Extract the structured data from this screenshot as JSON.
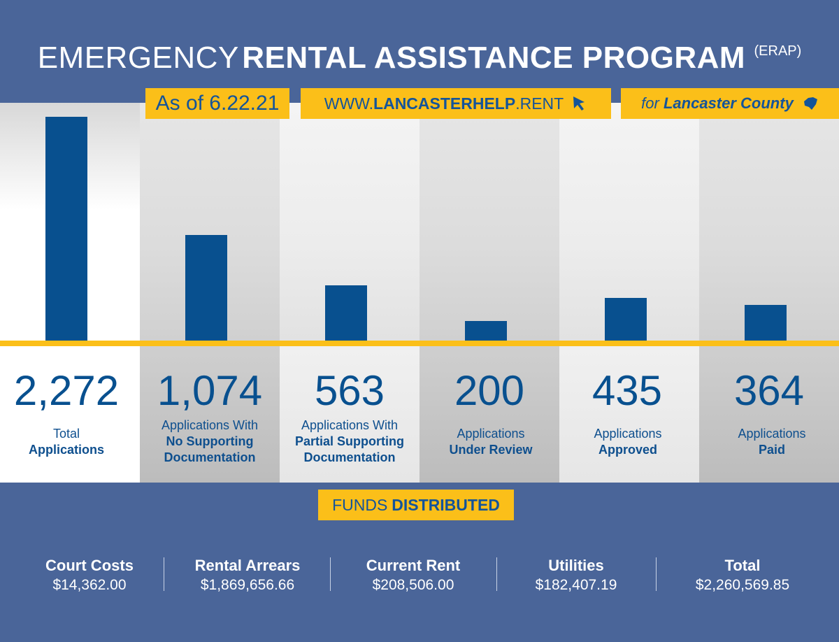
{
  "header": {
    "title_light": "EMERGENCY",
    "title_bold": "RENTAL ASSISTANCE PROGRAM",
    "title_abbr": "(ERAP)"
  },
  "banners": {
    "date": "As of 6.22.21",
    "url_prefix": "WWW.",
    "url_bold": "LANCASTERHELP",
    "url_suffix": ".RENT",
    "county_prefix": "for",
    "county_bold": "Lancaster County"
  },
  "chart_data": {
    "type": "bar",
    "categories": [
      "Total Applications",
      "Applications With No Supporting Documentation",
      "Applications With Partial Supporting Documentation",
      "Applications Under Review",
      "Applications Approved",
      "Applications Paid"
    ],
    "values": [
      2272,
      1074,
      563,
      200,
      435,
      364
    ],
    "value_labels": [
      "2,272",
      "1,074",
      "563",
      "200",
      "435",
      "364"
    ],
    "ylim": [
      0,
      2272
    ],
    "grid": false,
    "bar_color": "#08508f",
    "labels": [
      {
        "normal": "Total",
        "bold": "Applications"
      },
      {
        "normal": "Applications With",
        "bold1": "No Supporting",
        "bold2": "Documentation"
      },
      {
        "normal": "Applications With",
        "bold1": "Partial Supporting",
        "bold2": "Documentation"
      },
      {
        "normal": "Applications",
        "bold": "Under Review"
      },
      {
        "normal": "Applications",
        "bold": "Approved"
      },
      {
        "normal": "Applications",
        "bold": "Paid"
      }
    ]
  },
  "funds": {
    "title_normal": "FUNDS",
    "title_bold": "DISTRIBUTED",
    "items": [
      {
        "label": "Court Costs",
        "value": "$14,362.00"
      },
      {
        "label": "Rental Arrears",
        "value": "$1,869,656.66"
      },
      {
        "label": "Current Rent",
        "value": "$208,506.00"
      },
      {
        "label": "Utilities",
        "value": "$182,407.19"
      },
      {
        "label": "Total",
        "value": "$2,260,569.85"
      }
    ]
  },
  "colors": {
    "background": "#4a6599",
    "accent_yellow": "#fbbf19",
    "navy": "#08508f"
  },
  "icons": [
    "cursor-arrow-icon",
    "lancaster-county-map-icon"
  ]
}
